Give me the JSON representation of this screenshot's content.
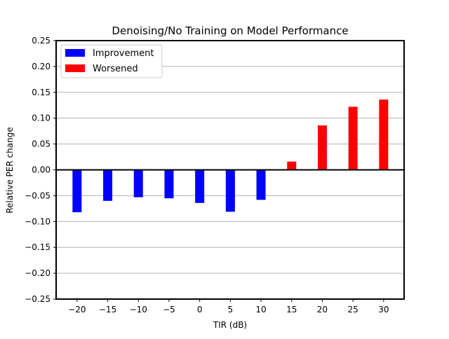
{
  "chart_data": {
    "type": "bar",
    "title": "Denoising/No Training on Model Performance",
    "xlabel": "TIR (dB)",
    "ylabel": "Relative PER change",
    "categories": [
      "−20",
      "−15",
      "−10",
      "−5",
      "0",
      "5",
      "10",
      "15",
      "20",
      "25",
      "30"
    ],
    "x": [
      -20,
      -15,
      -10,
      -5,
      0,
      5,
      10,
      15,
      20,
      25,
      30
    ],
    "values": [
      -0.082,
      -0.06,
      -0.053,
      -0.055,
      -0.064,
      -0.081,
      -0.058,
      0.016,
      0.086,
      0.122,
      0.136
    ],
    "ylim": [
      -0.25,
      0.25
    ],
    "yticks": [
      -0.25,
      -0.2,
      -0.15,
      -0.1,
      -0.05,
      0.0,
      0.05,
      0.1,
      0.15,
      0.2,
      0.25
    ],
    "ytick_labels": [
      "−0.25",
      "−0.20",
      "−0.15",
      "−0.10",
      "−0.05",
      "0.00",
      "0.05",
      "0.10",
      "0.15",
      "0.20",
      "0.25"
    ],
    "grid": "horizontal",
    "legend": {
      "placement": "top-left",
      "entries": [
        {
          "label": "Improvement",
          "color": "#0000ff"
        },
        {
          "label": "Worsened",
          "color": "#ff0000"
        }
      ]
    },
    "colors": {
      "negative": "#0000ff",
      "positive": "#ff0000"
    }
  }
}
